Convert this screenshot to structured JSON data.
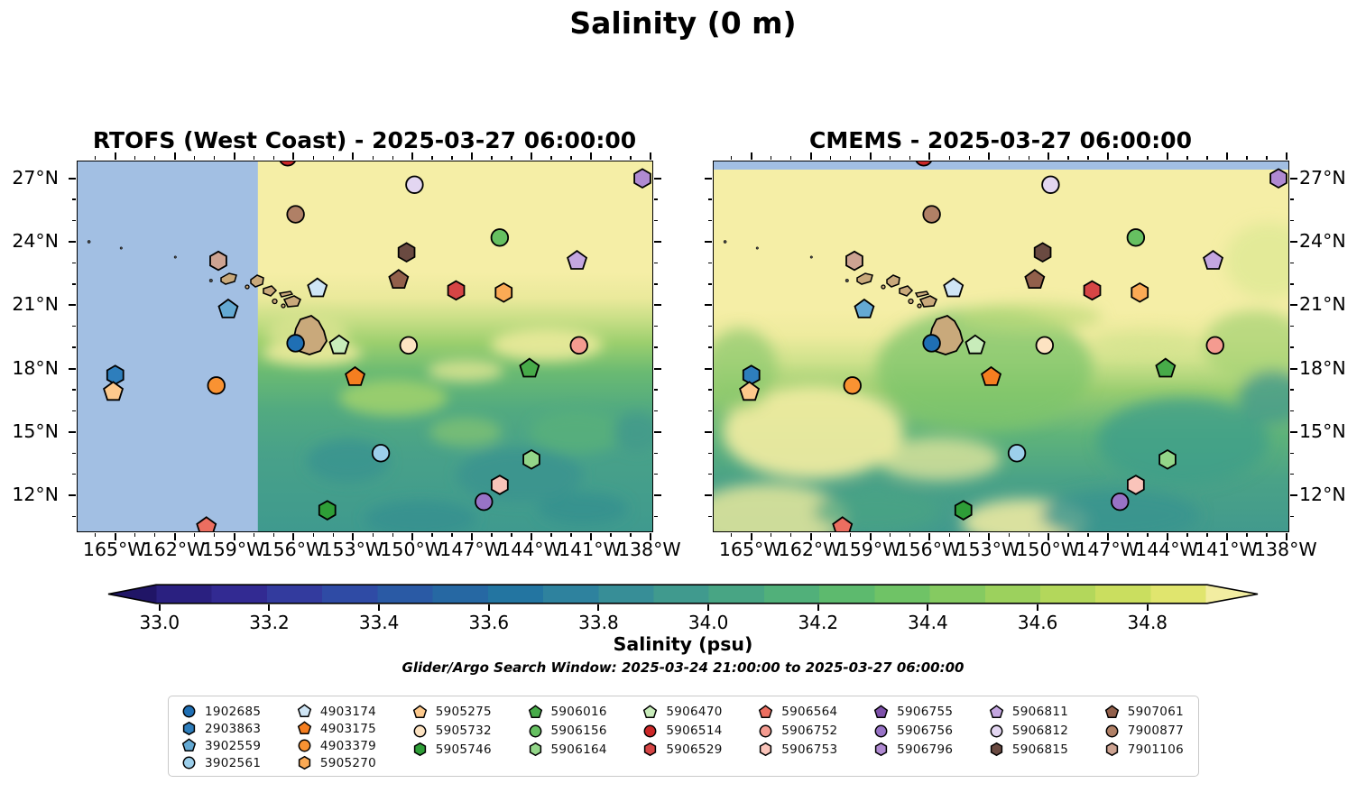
{
  "chart_data": {
    "type": "map-scatter",
    "title": "Salinity (0 m)",
    "panels": [
      {
        "id": "rtofs",
        "title": "RTOFS (West Coast) - 2025-03-27 06:00:00",
        "no_data_region": "west of 157.8°W",
        "no_data_color": "#a2bfe3"
      },
      {
        "id": "cmems",
        "title": "CMEMS - 2025-03-27 06:00:00",
        "no_data_region": "north of 27.1°N",
        "no_data_color": "#a2bfe3"
      }
    ],
    "lon_axis": {
      "tick_labels": [
        "165°W",
        "162°W",
        "159°W",
        "156°W",
        "153°W",
        "150°W",
        "147°W",
        "144°W",
        "141°W",
        "138°W"
      ],
      "tick_degrees": [
        165,
        162,
        159,
        156,
        153,
        150,
        147,
        144,
        141,
        138
      ],
      "range_deg_w": [
        166.9,
        137.9
      ]
    },
    "lat_axis": {
      "tick_labels": [
        "27°N",
        "24°N",
        "21°N",
        "18°N",
        "15°N",
        "12°N"
      ],
      "tick_degrees": [
        27,
        24,
        21,
        18,
        15,
        12
      ],
      "range_deg_n": [
        10.3,
        27.8
      ]
    },
    "colorbar": {
      "label": "Salinity (psu)",
      "tick_labels": [
        "33.0",
        "33.2",
        "33.4",
        "33.6",
        "33.8",
        "34.0",
        "34.2",
        "34.4",
        "34.6",
        "34.8"
      ],
      "range_psu": [
        33.0,
        34.9
      ],
      "extend": "both",
      "under_color": "#201566",
      "over_color": "#f2eda1",
      "segment_colors": [
        "#2a2080",
        "#322a92",
        "#333b9e",
        "#2f4ba5",
        "#2a5aa5",
        "#2668a3",
        "#2375a1",
        "#2e829e",
        "#378e97",
        "#409a8e",
        "#48a584",
        "#51b07a",
        "#5dba6e",
        "#6fc366",
        "#85ca61",
        "#9cd15d",
        "#b3d75b",
        "#cade5f",
        "#e0e56e"
      ]
    },
    "search_window_note": "Glider/Argo Search Window: 2025-03-24 21:00:00 to 2025-03-27 06:00:00",
    "map_colors": {
      "land": "#c9a97b",
      "ocean_high_salinity": "#f5eea6",
      "ocean_mid": "#6aba72",
      "ocean_low": "#3f9a8e"
    },
    "floats": [
      {
        "id": "1902685",
        "shape": "circle",
        "color": "#1f6fb4",
        "lon_w": 155.9,
        "lat_n": 19.2
      },
      {
        "id": "2903863",
        "shape": "hexagon",
        "color": "#2e7ebc",
        "lon_w": 165.0,
        "lat_n": 17.7
      },
      {
        "id": "3902559",
        "shape": "pentagon",
        "color": "#64a9d3",
        "lon_w": 159.3,
        "lat_n": 20.8
      },
      {
        "id": "3902561",
        "shape": "circle",
        "color": "#9ccfeb",
        "lon_w": 151.6,
        "lat_n": 14.0
      },
      {
        "id": "4903174",
        "shape": "pentagon",
        "color": "#cfe5f5",
        "lon_w": 154.8,
        "lat_n": 21.8
      },
      {
        "id": "4903175",
        "shape": "pentagon",
        "color": "#f57e20",
        "lon_w": 152.9,
        "lat_n": 17.6
      },
      {
        "id": "4903379",
        "shape": "circle",
        "color": "#f99232",
        "lon_w": 159.9,
        "lat_n": 17.2
      },
      {
        "id": "5905270",
        "shape": "hexagon",
        "color": "#fbaa55",
        "lon_w": 145.4,
        "lat_n": 21.6
      },
      {
        "id": "5905275",
        "shape": "pentagon",
        "color": "#fdc98c",
        "lon_w": 165.1,
        "lat_n": 16.9
      },
      {
        "id": "5905732",
        "shape": "circle",
        "color": "#fde3c2",
        "lon_w": 150.2,
        "lat_n": 19.1
      },
      {
        "id": "5905746",
        "shape": "hexagon",
        "color": "#2e9e37",
        "lon_w": 154.3,
        "lat_n": 11.3
      },
      {
        "id": "5906016",
        "shape": "pentagon",
        "color": "#47ab49",
        "lon_w": 144.1,
        "lat_n": 18.0
      },
      {
        "id": "5906156",
        "shape": "circle",
        "color": "#66c061",
        "lon_w": 145.6,
        "lat_n": 24.2
      },
      {
        "id": "5906164",
        "shape": "hexagon",
        "color": "#93d689",
        "lon_w": 144.0,
        "lat_n": 13.7
      },
      {
        "id": "5906470",
        "shape": "pentagon",
        "color": "#c8ecba",
        "lon_w": 153.7,
        "lat_n": 19.1
      },
      {
        "id": "5906514",
        "shape": "circle",
        "color": "#cc2828",
        "lon_w": 156.3,
        "lat_n": 28.0
      },
      {
        "id": "5906529",
        "shape": "hexagon",
        "color": "#d64545",
        "lon_w": 147.8,
        "lat_n": 21.7
      },
      {
        "id": "5906564",
        "shape": "pentagon",
        "color": "#ec6e60",
        "lon_w": 160.4,
        "lat_n": 10.5
      },
      {
        "id": "5906752",
        "shape": "circle",
        "color": "#f49b90",
        "lon_w": 141.6,
        "lat_n": 19.1
      },
      {
        "id": "5906753",
        "shape": "hexagon",
        "color": "#fac4ba",
        "lon_w": 145.6,
        "lat_n": 12.5
      },
      {
        "id": "5906755",
        "shape": "pentagon",
        "color": "#7d50a9",
        "lon_w": null,
        "lat_n": null
      },
      {
        "id": "5906756",
        "shape": "circle",
        "color": "#9873c6",
        "lon_w": 146.4,
        "lat_n": 11.7
      },
      {
        "id": "5906796",
        "shape": "hexagon",
        "color": "#b08ad2",
        "lon_w": 138.4,
        "lat_n": 27.0
      },
      {
        "id": "5906811",
        "shape": "pentagon",
        "color": "#c4a6e0",
        "lon_w": 141.7,
        "lat_n": 23.1
      },
      {
        "id": "5906812",
        "shape": "circle",
        "color": "#e3d6f1",
        "lon_w": 149.9,
        "lat_n": 26.7
      },
      {
        "id": "5906815",
        "shape": "hexagon",
        "color": "#6a4a41",
        "lon_w": 150.3,
        "lat_n": 23.5
      },
      {
        "id": "5907061",
        "shape": "pentagon",
        "color": "#92604b",
        "lon_w": 150.7,
        "lat_n": 22.2
      },
      {
        "id": "7900877",
        "shape": "circle",
        "color": "#b08066",
        "lon_w": 155.9,
        "lat_n": 25.3
      },
      {
        "id": "7901106",
        "shape": "hexagon",
        "color": "#cda392",
        "lon_w": 159.8,
        "lat_n": 23.1
      }
    ],
    "legend_column_sizes": [
      4,
      4,
      3,
      3,
      3,
      3,
      3,
      3,
      3
    ]
  }
}
